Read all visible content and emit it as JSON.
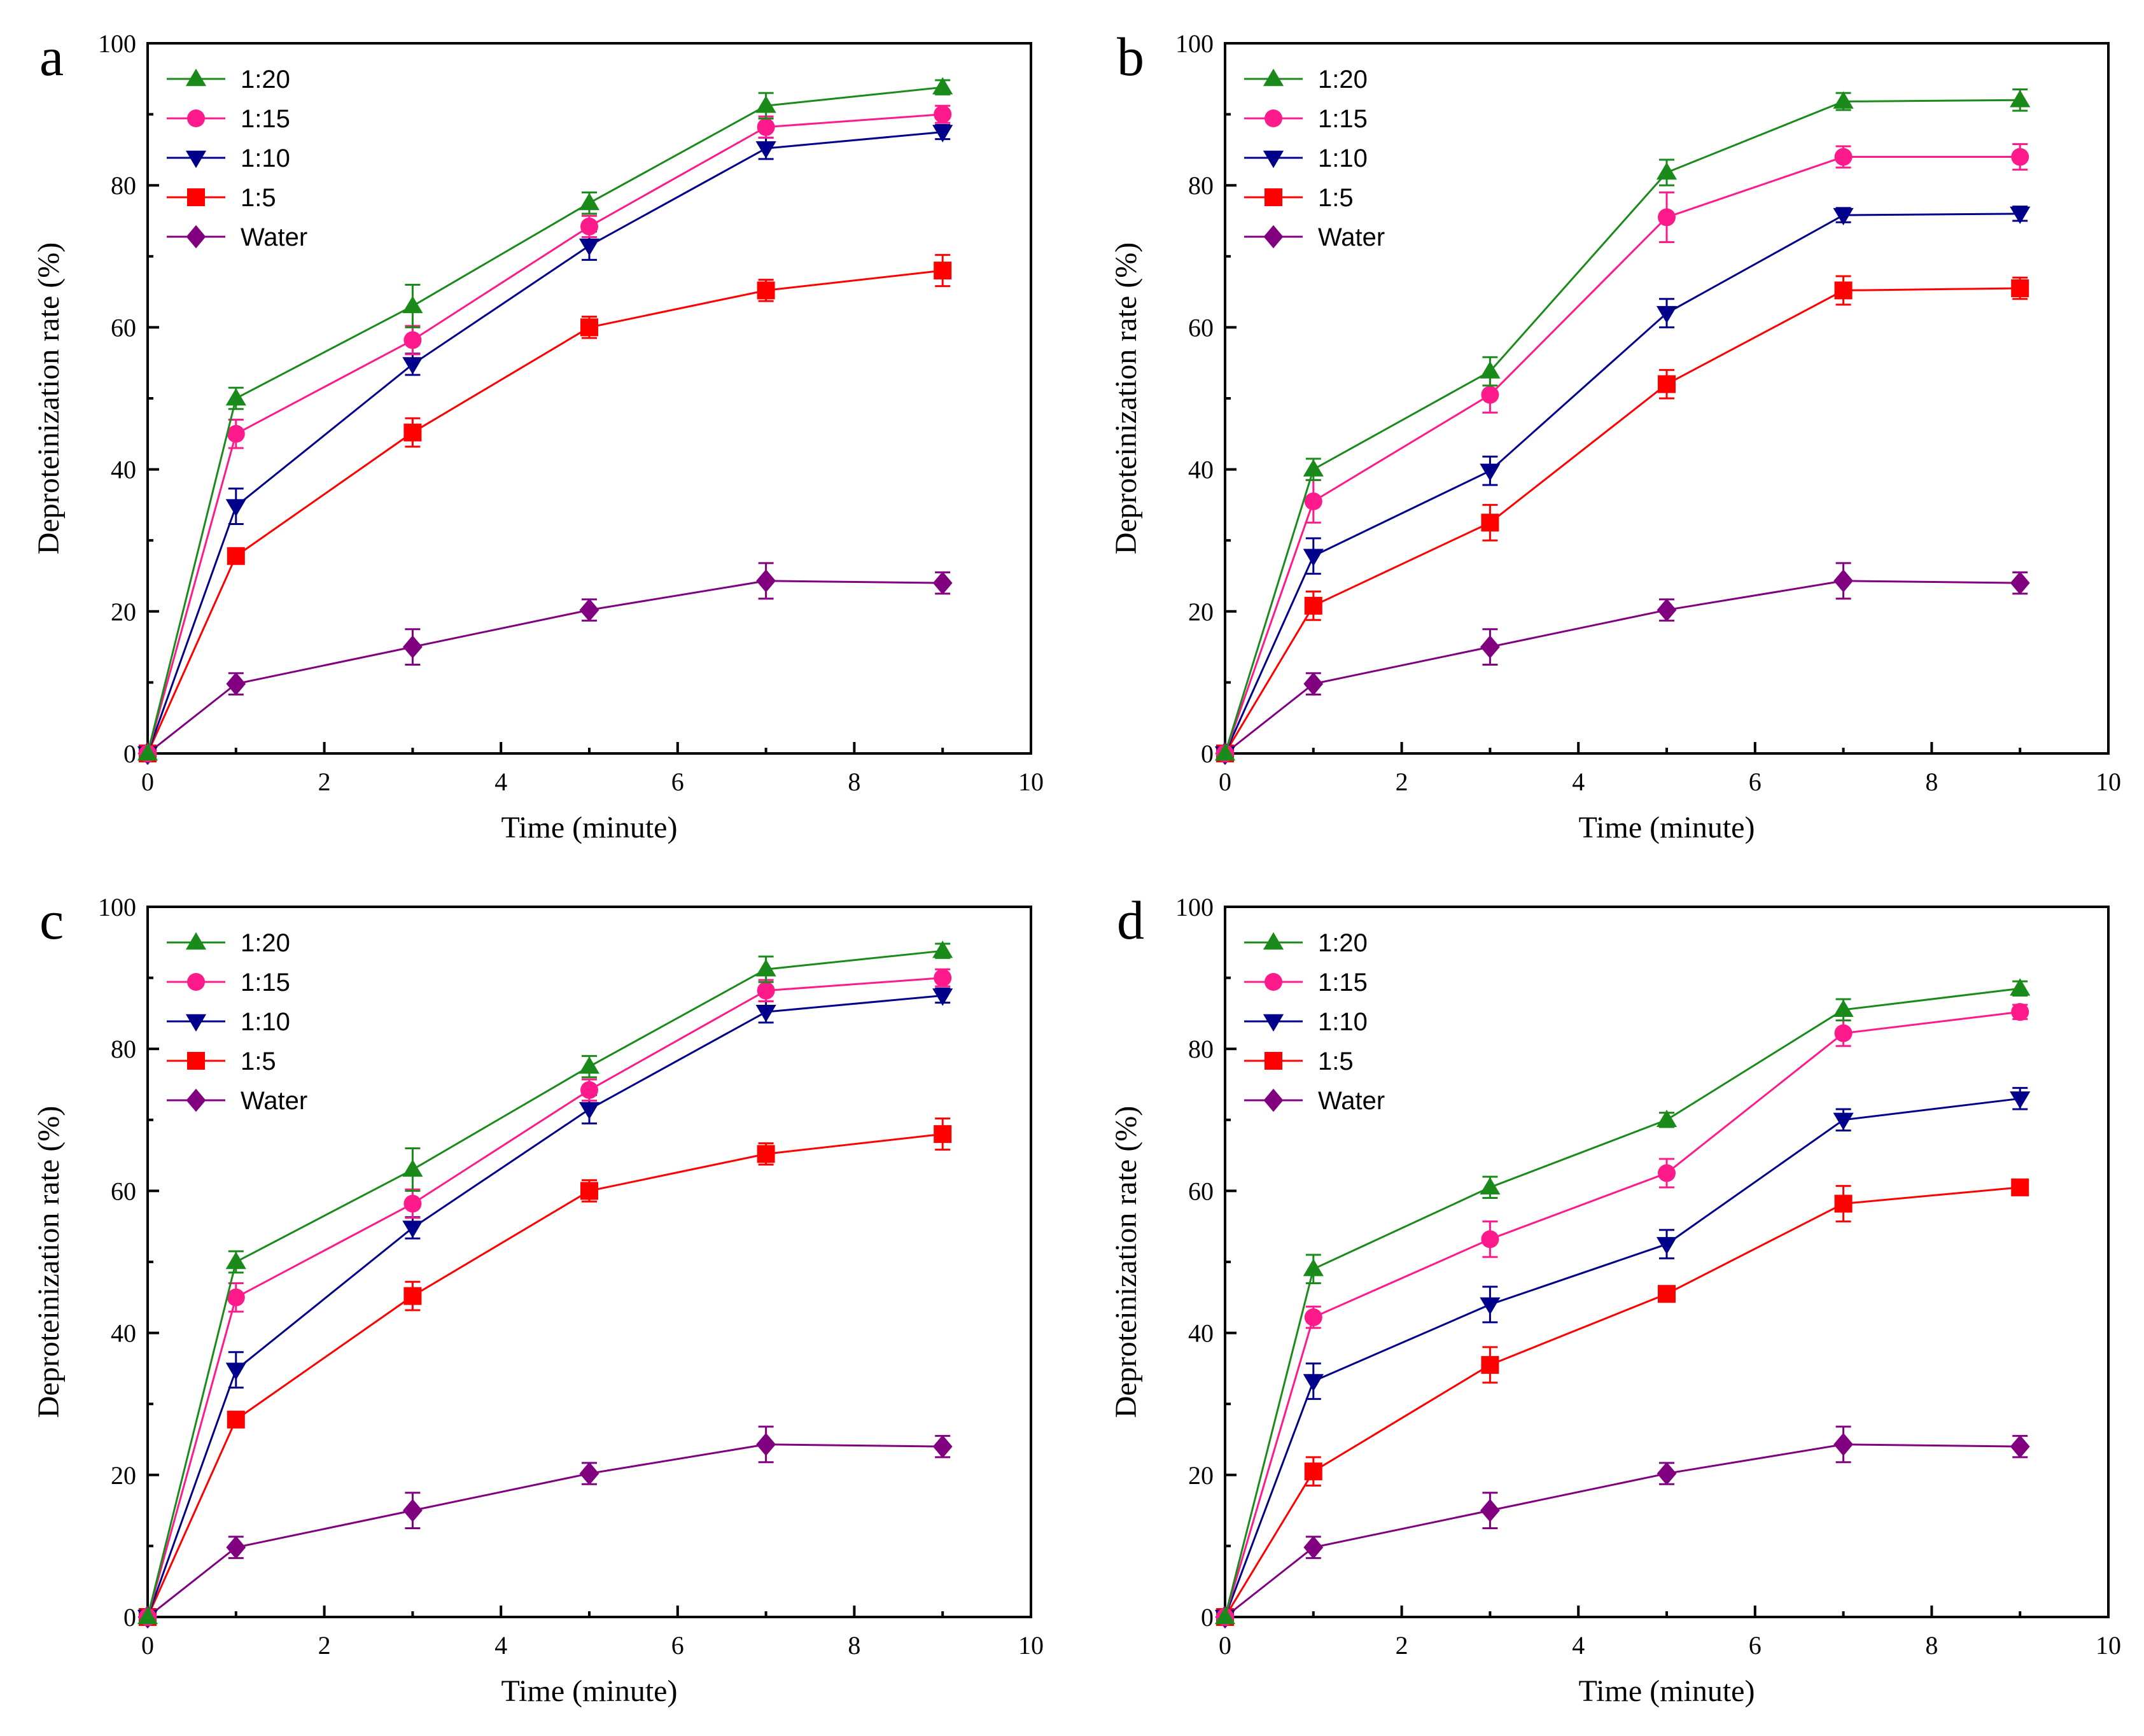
{
  "chart_data": [
    {
      "type": "line",
      "panel": "a",
      "xlabel": "Time (minute)",
      "ylabel": "Deproteinization rate (%)",
      "xlim": [
        0,
        10
      ],
      "ylim": [
        0,
        100
      ],
      "xticks": [
        0,
        2,
        4,
        6,
        8,
        10
      ],
      "yticks": [
        0,
        20,
        40,
        60,
        80,
        100
      ],
      "legend_position": "top-left",
      "x": [
        0,
        1,
        3,
        5,
        7,
        9
      ],
      "series": [
        {
          "name": "1:20",
          "color": "#1a8a1a",
          "marker": "triangle-up",
          "values": [
            0,
            50,
            63,
            77.5,
            91.2,
            93.8
          ],
          "errors": [
            0,
            1.5,
            3,
            1.5,
            1.8,
            1
          ]
        },
        {
          "name": "1:15",
          "color": "#ff1a8c",
          "marker": "circle",
          "values": [
            0,
            45,
            58.2,
            74.2,
            88.2,
            90
          ],
          "errors": [
            0,
            2,
            2,
            1.5,
            1.5,
            1.2
          ]
        },
        {
          "name": "1:10",
          "color": "#00008b",
          "marker": "triangle-down",
          "values": [
            0,
            34.8,
            54.8,
            71.5,
            85.2,
            87.5
          ],
          "errors": [
            0,
            2.5,
            1.5,
            2,
            1.5,
            1
          ]
        },
        {
          "name": "1:5",
          "color": "#ff0000",
          "marker": "square",
          "values": [
            0,
            27.8,
            45.2,
            60,
            65.2,
            68
          ],
          "errors": [
            0,
            1,
            2,
            1.5,
            1.5,
            2.2
          ]
        },
        {
          "name": "Water",
          "color": "#800080",
          "marker": "diamond",
          "values": [
            0,
            9.8,
            15,
            20.2,
            24.3,
            24
          ],
          "errors": [
            0,
            1.5,
            2.5,
            1.5,
            2.5,
            1.5
          ]
        }
      ]
    },
    {
      "type": "line",
      "panel": "b",
      "xlabel": "Time (minute)",
      "ylabel": "Deproteinization rate (%)",
      "xlim": [
        0,
        10
      ],
      "ylim": [
        0,
        100
      ],
      "xticks": [
        0,
        2,
        4,
        6,
        8,
        10
      ],
      "yticks": [
        0,
        20,
        40,
        60,
        80,
        100
      ],
      "legend_position": "top-left",
      "x": [
        0,
        1,
        3,
        5,
        7,
        9
      ],
      "series": [
        {
          "name": "1:20",
          "color": "#1a8a1a",
          "marker": "triangle-up",
          "values": [
            0,
            40,
            53.8,
            81.8,
            91.8,
            92
          ],
          "errors": [
            0,
            1.5,
            2,
            1.8,
            1.2,
            1.5
          ]
        },
        {
          "name": "1:15",
          "color": "#ff1a8c",
          "marker": "circle",
          "values": [
            0,
            35.5,
            50.5,
            75.5,
            84,
            84
          ],
          "errors": [
            0,
            3,
            2.5,
            3.5,
            1.5,
            1.8
          ]
        },
        {
          "name": "1:10",
          "color": "#00008b",
          "marker": "triangle-down",
          "values": [
            0,
            27.8,
            39.8,
            62,
            75.8,
            76
          ],
          "errors": [
            0,
            2.5,
            2,
            2,
            1,
            1
          ]
        },
        {
          "name": "1:5",
          "color": "#ff0000",
          "marker": "square",
          "values": [
            0,
            20.8,
            32.5,
            52,
            65.2,
            65.5
          ],
          "errors": [
            0,
            2,
            2.5,
            2,
            2,
            1.5
          ]
        },
        {
          "name": "Water",
          "color": "#800080",
          "marker": "diamond",
          "values": [
            0,
            9.8,
            15,
            20.2,
            24.3,
            24
          ],
          "errors": [
            0,
            1.5,
            2.5,
            1.5,
            2.5,
            1.5
          ]
        }
      ]
    },
    {
      "type": "line",
      "panel": "c",
      "xlabel": "Time (minute)",
      "ylabel": "Deproteinization rate (%)",
      "xlim": [
        0,
        10
      ],
      "ylim": [
        0,
        100
      ],
      "xticks": [
        0,
        2,
        4,
        6,
        8,
        10
      ],
      "yticks": [
        0,
        20,
        40,
        60,
        80,
        100
      ],
      "legend_position": "top-left",
      "x": [
        0,
        1,
        3,
        5,
        7,
        9
      ],
      "series": [
        {
          "name": "1:20",
          "color": "#1a8a1a",
          "marker": "triangle-up",
          "values": [
            0,
            50,
            63,
            77.5,
            91.2,
            93.8
          ],
          "errors": [
            0,
            1.5,
            3,
            1.5,
            1.8,
            1
          ]
        },
        {
          "name": "1:15",
          "color": "#ff1a8c",
          "marker": "circle",
          "values": [
            0,
            45,
            58.2,
            74.2,
            88.2,
            90
          ],
          "errors": [
            0,
            2,
            2,
            1.5,
            1.5,
            1.2
          ]
        },
        {
          "name": "1:10",
          "color": "#00008b",
          "marker": "triangle-down",
          "values": [
            0,
            34.8,
            54.8,
            71.5,
            85.2,
            87.5
          ],
          "errors": [
            0,
            2.5,
            1.5,
            2,
            1.5,
            1
          ]
        },
        {
          "name": "1:5",
          "color": "#ff0000",
          "marker": "square",
          "values": [
            0,
            27.8,
            45.2,
            60,
            65.2,
            68
          ],
          "errors": [
            0,
            1,
            2,
            1.5,
            1.5,
            2.2
          ]
        },
        {
          "name": "Water",
          "color": "#800080",
          "marker": "diamond",
          "values": [
            0,
            9.8,
            15,
            20.2,
            24.3,
            24
          ],
          "errors": [
            0,
            1.5,
            2.5,
            1.5,
            2.5,
            1.5
          ]
        }
      ]
    },
    {
      "type": "line",
      "panel": "d",
      "xlabel": "Time (minute)",
      "ylabel": "Deproteinization rate (%)",
      "xlim": [
        0,
        10
      ],
      "ylim": [
        0,
        100
      ],
      "xticks": [
        0,
        2,
        4,
        6,
        8,
        10
      ],
      "yticks": [
        0,
        20,
        40,
        60,
        80,
        100
      ],
      "legend_position": "top-left",
      "x": [
        0,
        1,
        3,
        5,
        7,
        9
      ],
      "series": [
        {
          "name": "1:20",
          "color": "#1a8a1a",
          "marker": "triangle-up",
          "values": [
            0,
            49,
            60.5,
            70,
            85.5,
            88.5
          ],
          "errors": [
            0,
            2,
            1.5,
            1,
            1.5,
            1
          ]
        },
        {
          "name": "1:15",
          "color": "#ff1a8c",
          "marker": "circle",
          "values": [
            0,
            42.2,
            53.2,
            62.5,
            82.2,
            85.2
          ],
          "errors": [
            0,
            1.5,
            2.5,
            2,
            1.8,
            1
          ]
        },
        {
          "name": "1:10",
          "color": "#00008b",
          "marker": "triangle-down",
          "values": [
            0,
            33.2,
            44,
            52.5,
            70,
            73
          ],
          "errors": [
            0,
            2.5,
            2.5,
            2,
            1.5,
            1.5
          ]
        },
        {
          "name": "1:5",
          "color": "#ff0000",
          "marker": "square",
          "values": [
            0,
            20.5,
            35.5,
            45.5,
            58.2,
            60.5
          ],
          "errors": [
            0,
            2,
            2.5,
            1,
            2.5,
            1
          ]
        },
        {
          "name": "Water",
          "color": "#800080",
          "marker": "diamond",
          "values": [
            0,
            9.8,
            15,
            20.2,
            24.3,
            24
          ],
          "errors": [
            0,
            1.5,
            2.5,
            1.5,
            2.5,
            1.5
          ]
        }
      ]
    }
  ]
}
